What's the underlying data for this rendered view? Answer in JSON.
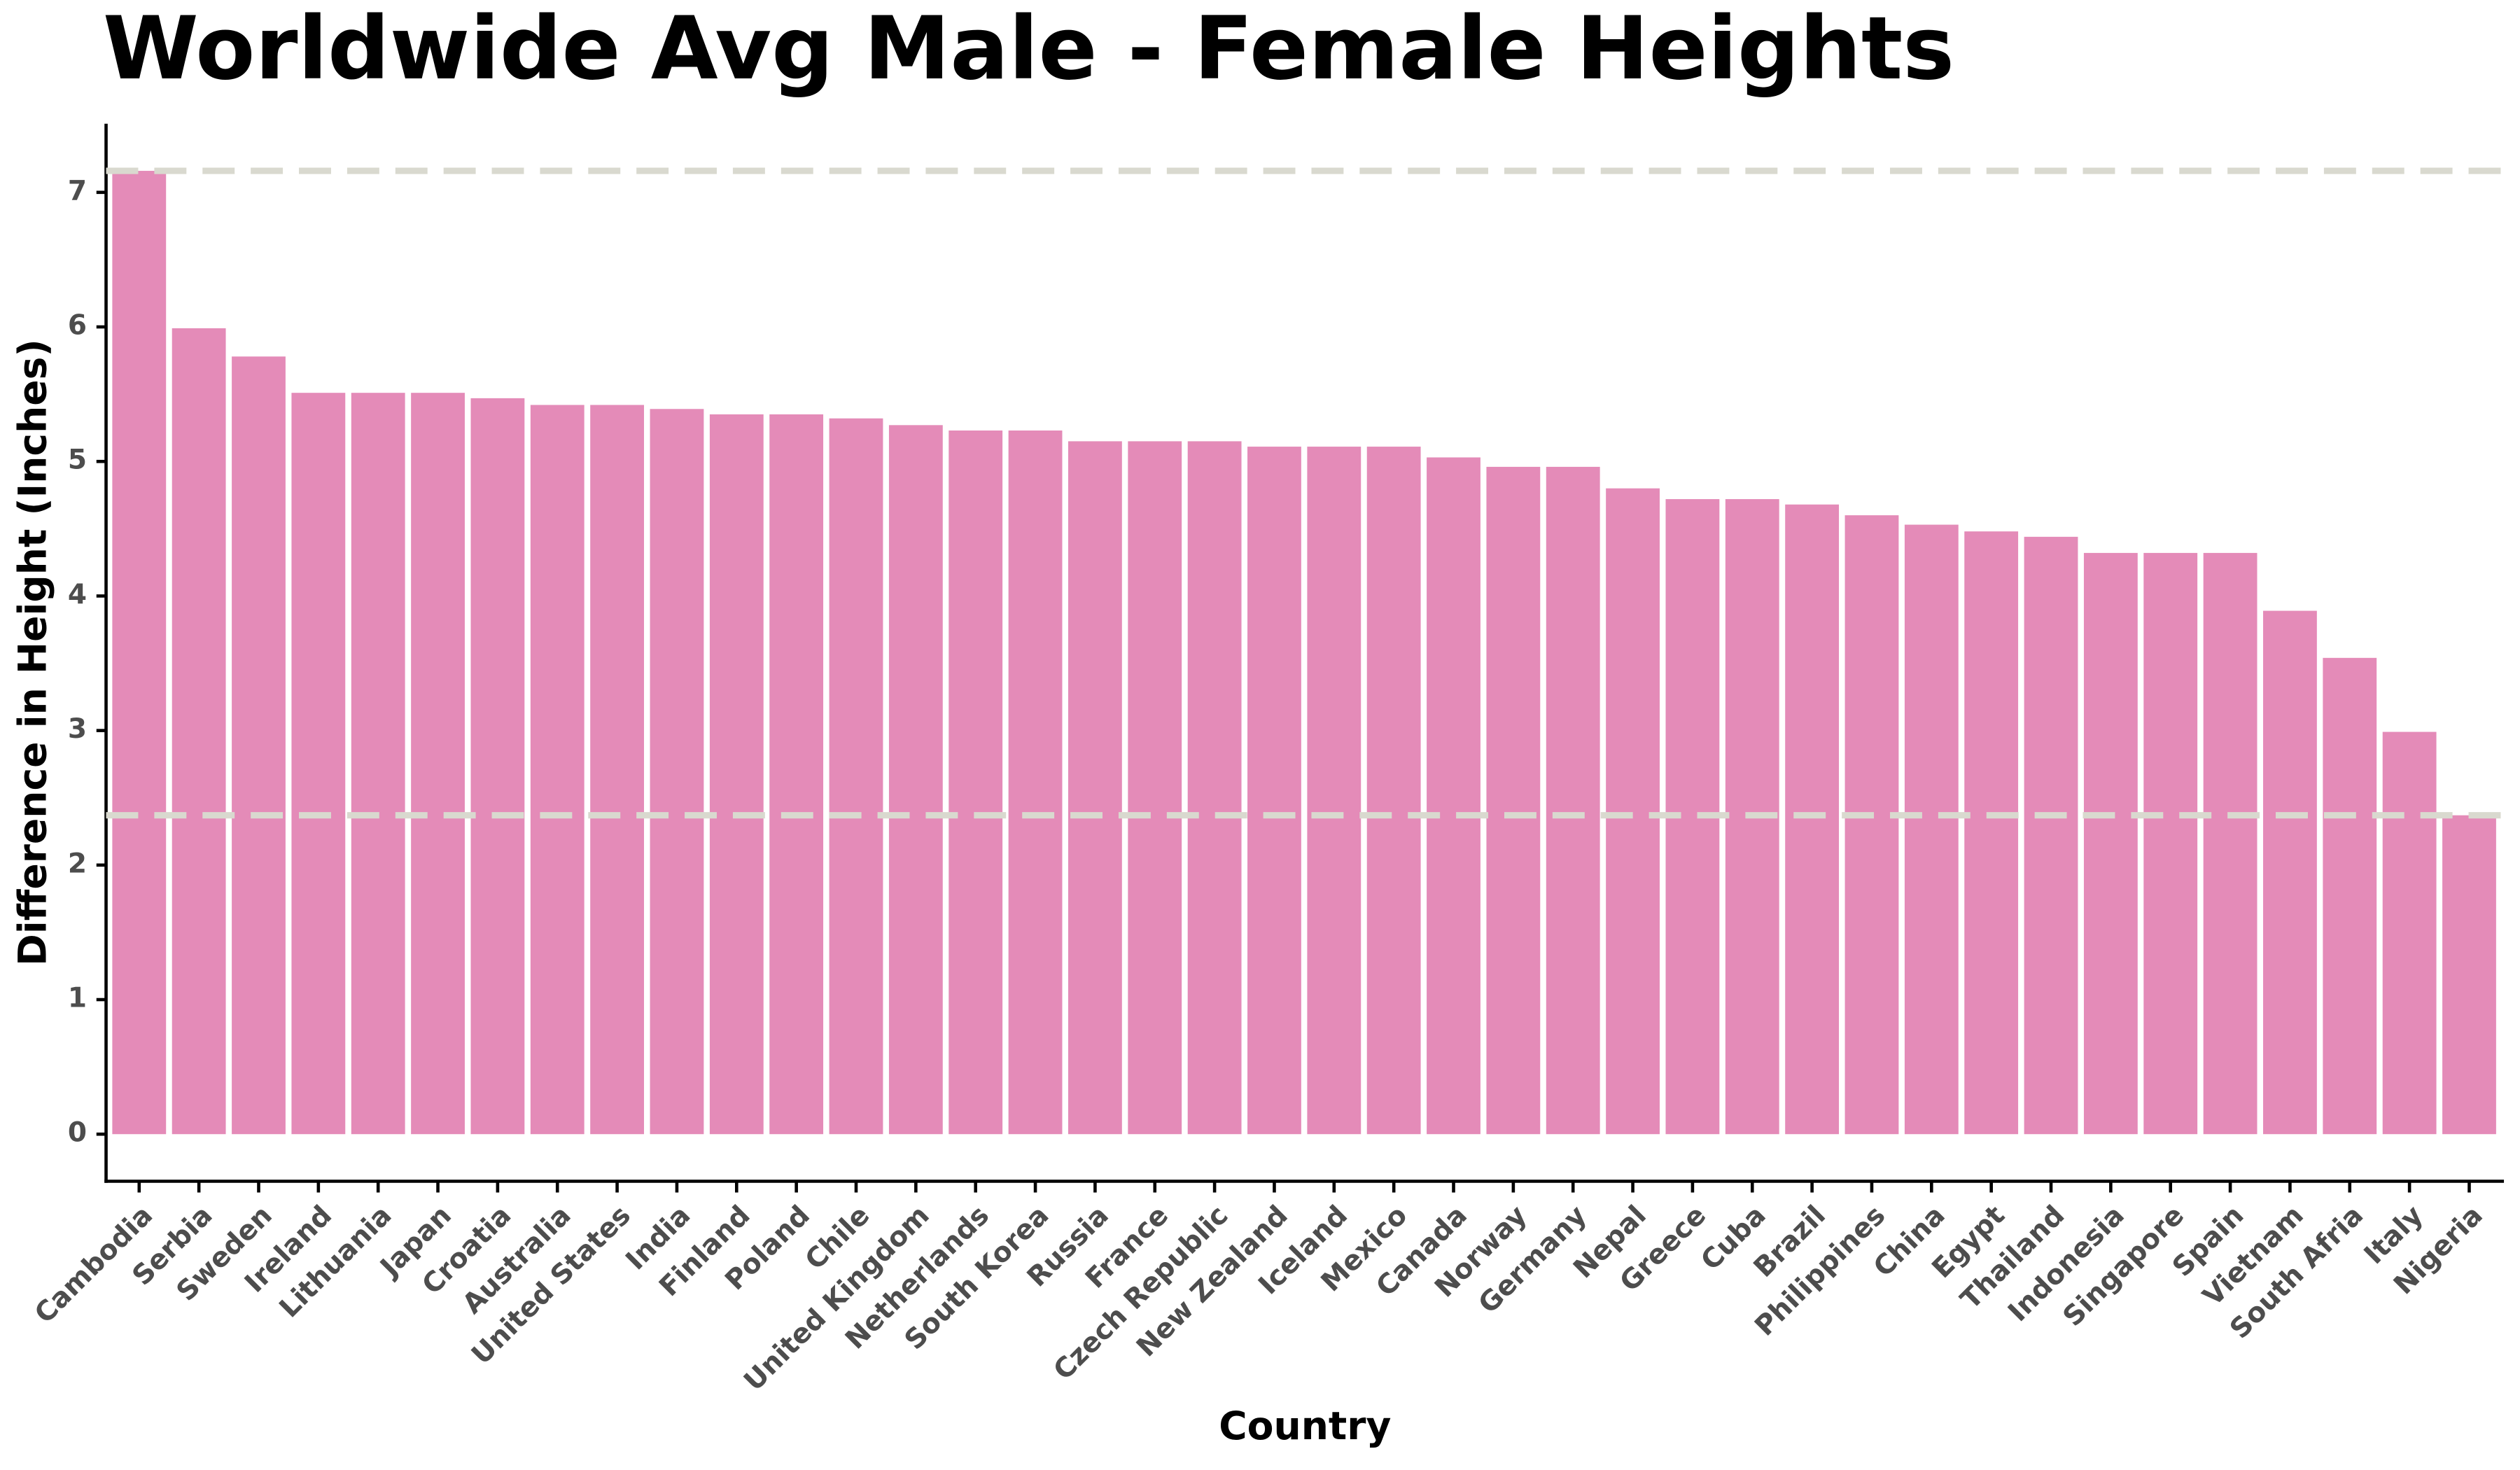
{
  "chart_data": {
    "type": "bar",
    "title": "Worldwide Avg Male - Female Heights",
    "x_label": "Country",
    "y_label": "Difference in Height (Inches)",
    "categories": [
      "Cambodia",
      "Serbia",
      "Sweden",
      "Ireland",
      "Lithuania",
      "Japan",
      "Croatia",
      "Australia",
      "United States",
      "India",
      "Finland",
      "Poland",
      "Chile",
      "United Kingdom",
      "Netherlands",
      "South Korea",
      "Russia",
      "France",
      "Czech Republic",
      "New Zealand",
      "Iceland",
      "Mexico",
      "Canada",
      "Norway",
      "Germany",
      "Nepal",
      "Greece",
      "Cuba",
      "Brazil",
      "Philippines",
      "China",
      "Egypt",
      "Thailand",
      "Indonesia",
      "Singapore",
      "Spain",
      "Vietnam",
      "South Afria",
      "Italy",
      "Nigeria"
    ],
    "values": [
      7.16,
      5.99,
      5.78,
      5.51,
      5.51,
      5.51,
      5.47,
      5.42,
      5.42,
      5.39,
      5.35,
      5.35,
      5.32,
      5.27,
      5.23,
      5.23,
      5.15,
      5.15,
      5.15,
      5.11,
      5.11,
      5.11,
      5.03,
      4.96,
      4.96,
      4.8,
      4.72,
      4.72,
      4.68,
      4.6,
      4.53,
      4.48,
      4.44,
      4.32,
      4.32,
      4.32,
      3.89,
      3.54,
      2.99,
      2.37
    ],
    "color": "#e48bb8",
    "ylim": [
      -0.35,
      7.51
    ],
    "yticks": [
      0,
      1,
      2,
      3,
      4,
      5,
      6,
      7
    ],
    "grid": false,
    "reference_line_color": "#d9d9cf"
  }
}
